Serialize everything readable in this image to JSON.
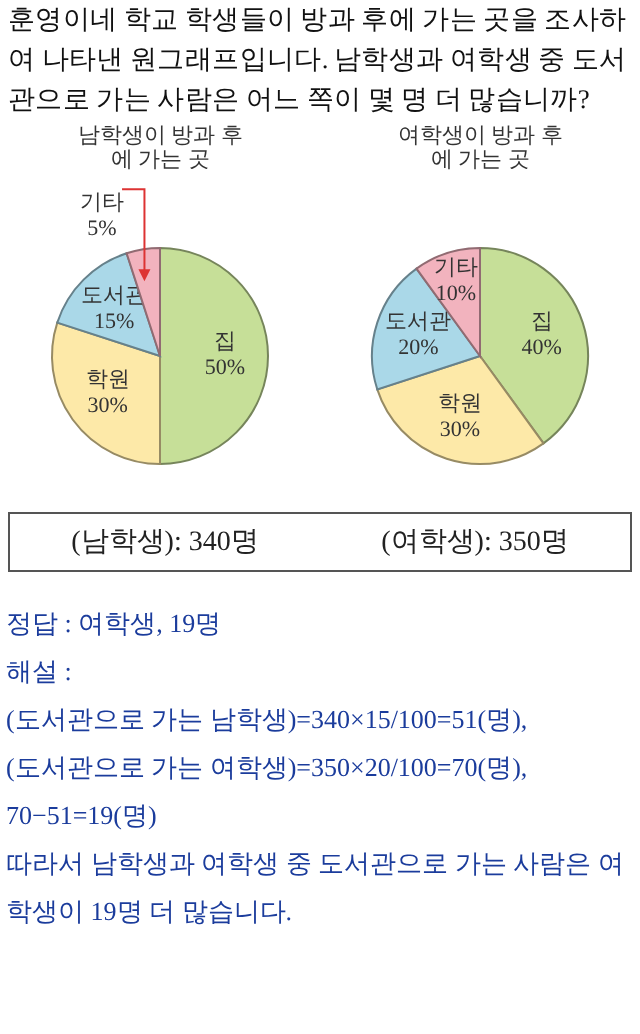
{
  "chart_data": [
    {
      "type": "other",
      "annotations": [
        "훈영이네 학교 학생들이 방과 후에 가는 곳을 조사하여 나타낸 원그래프입니다. 남학생과 여학생 중 도서관으로 가는 사람은 어느 쪽이 몇 명 더 많습니까?"
      ]
    },
    {
      "type": "pie",
      "title": "남학생이 방과 후에 가는 곳",
      "categories": [
        "집",
        "학원",
        "도서관",
        "기타"
      ],
      "values": [
        50,
        30,
        15,
        5
      ],
      "value_labels": [
        "50%",
        "30%",
        "15%",
        "5%"
      ],
      "colors": [
        "#c6df98",
        "#fde9a8",
        "#aad8e8",
        "#f2b3be"
      ]
    },
    {
      "type": "pie",
      "title": "여학생이 방과 후에 가는 곳",
      "categories": [
        "집",
        "학원",
        "도서관",
        "기타"
      ],
      "values": [
        40,
        30,
        20,
        10
      ],
      "value_labels": [
        "40%",
        "30%",
        "20%",
        "10%"
      ],
      "colors": [
        "#c6df98",
        "#fde9a8",
        "#aad8e8",
        "#f2b3be"
      ]
    },
    {
      "type": "other",
      "annotations": [
        "(남학생): 340명",
        "(여학생): 350명"
      ]
    },
    {
      "type": "other",
      "annotations": [
        "정답 : 여학생, 19명",
        "해설 :",
        "(도서관으로 가는 남학생)=340×15/100=51(명),",
        "(도서관으로 가는 여학생)=350×20/100=70(명),",
        "70−51=19(명)",
        "따라서 남학생과 여학생 중 도서관으로 가는 사람은 여학생이 19명 더 많습니다."
      ]
    }
  ]
}
